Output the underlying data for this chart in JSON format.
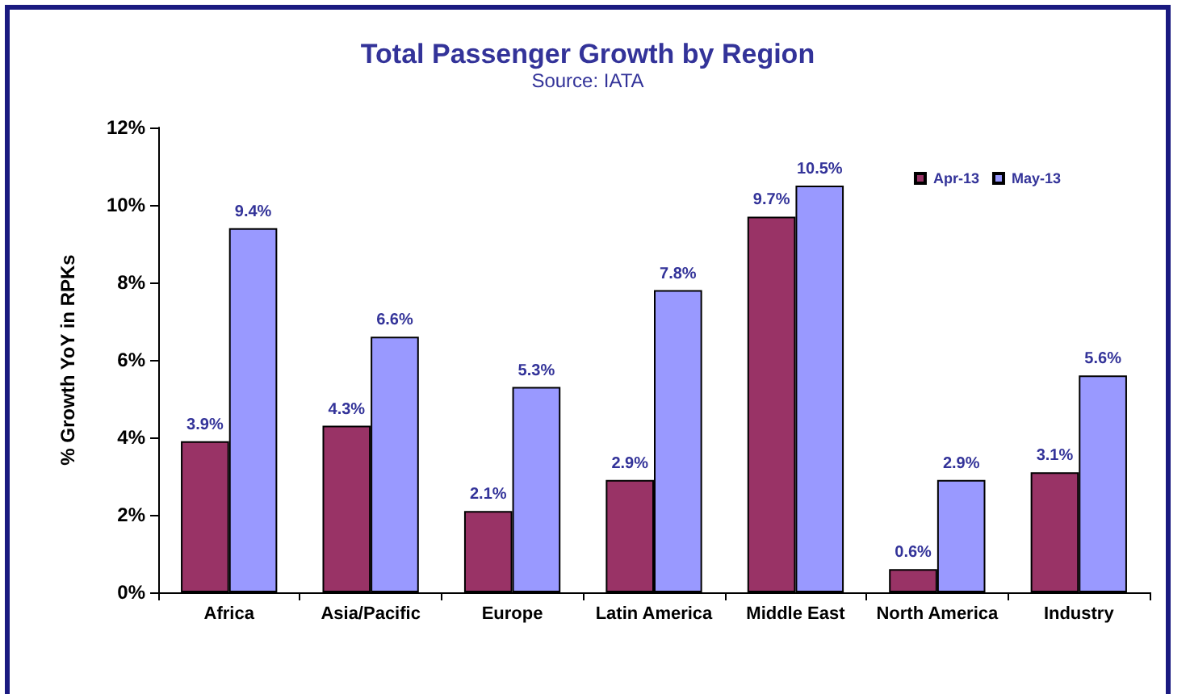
{
  "chart_data": {
    "type": "bar",
    "title": "Total Passenger Growth by Region",
    "subtitle": "Source: IATA",
    "ylabel": "% Growth YoY in RPKs",
    "categories": [
      "Africa",
      "Asia/Pacific",
      "Europe",
      "Latin America",
      "Middle East",
      "North America",
      "Industry"
    ],
    "series": [
      {
        "name": "Apr-13",
        "color": "#993366",
        "values": [
          3.9,
          4.3,
          2.1,
          2.9,
          9.7,
          0.6,
          3.1
        ],
        "value_labels": [
          "3.9%",
          "4.3%",
          "2.1%",
          "2.9%",
          "9.7%",
          "0.6%",
          "3.1%"
        ]
      },
      {
        "name": "May-13",
        "color": "#9999ff",
        "values": [
          9.4,
          6.6,
          5.3,
          7.8,
          10.5,
          2.9,
          5.6
        ],
        "value_labels": [
          "9.4%",
          "6.6%",
          "5.3%",
          "7.8%",
          "10.5%",
          "2.9%",
          "5.6%"
        ]
      }
    ],
    "ylim": [
      0,
      12
    ],
    "yticks": [
      {
        "value": 0,
        "label": "0%"
      },
      {
        "value": 2,
        "label": "2%"
      },
      {
        "value": 4,
        "label": "4%"
      },
      {
        "value": 6,
        "label": "6%"
      },
      {
        "value": 8,
        "label": "8%"
      },
      {
        "value": 10,
        "label": "10%"
      },
      {
        "value": 12,
        "label": "12%"
      }
    ],
    "grid": false,
    "legend": "top right"
  }
}
